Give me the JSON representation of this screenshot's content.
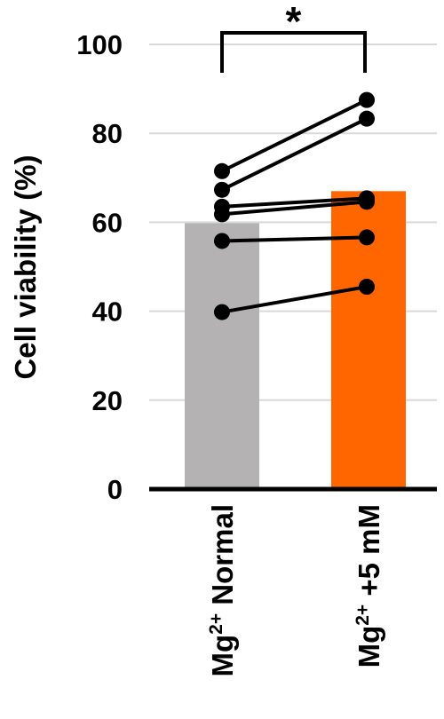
{
  "chart_data": {
    "type": "bar",
    "ylabel": "Cell viability (%)",
    "ylim": [
      0,
      100
    ],
    "yticks": [
      0,
      20,
      40,
      60,
      80,
      100
    ],
    "grid": true,
    "categories": [
      {
        "base": "Mg",
        "sup": "2+",
        "rest": " Normal"
      },
      {
        "base": "Mg",
        "sup": "2+",
        "rest": " +5 mM"
      }
    ],
    "bar_values": [
      59.8,
      67.0
    ],
    "bar_colors": [
      "#b4b2b2",
      "#ff6600"
    ],
    "paired_points": [
      [
        71.5,
        87.5
      ],
      [
        67.3,
        83.3
      ],
      [
        63.5,
        65.4
      ],
      [
        61.8,
        64.6
      ],
      [
        55.8,
        56.6
      ],
      [
        39.8,
        45.5
      ]
    ],
    "significance": {
      "between": [
        0,
        1
      ],
      "label": "*"
    }
  }
}
